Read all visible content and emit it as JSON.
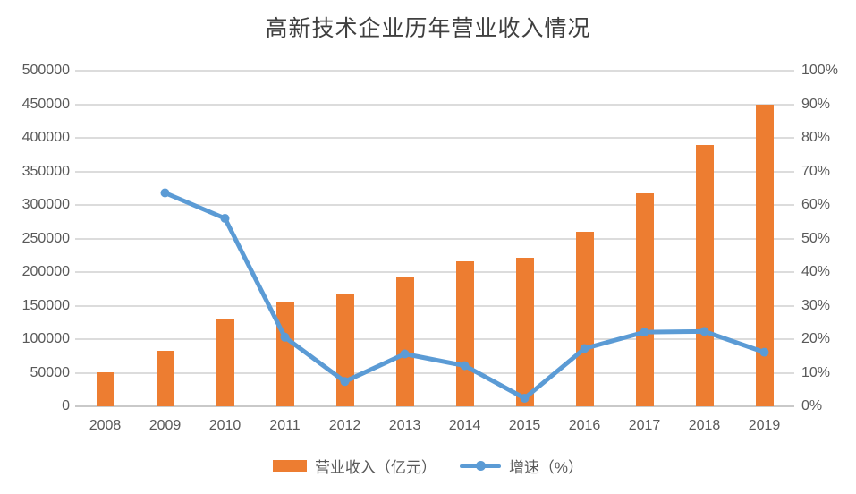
{
  "title": "高新技术企业历年营业收入情况",
  "colors": {
    "bar": "#ED7D31",
    "line": "#5B9BD5",
    "gridline": "#DCDCDC",
    "axis_text": "#595959",
    "title_text": "#3F3F3F"
  },
  "legend": {
    "items": [
      {
        "label": "营业收入（亿元）",
        "marker": "bar-swatch",
        "color": "#ED7D31"
      },
      {
        "label": "增速（%）",
        "marker": "line-dot-swatch",
        "color": "#5B9BD5"
      }
    ]
  },
  "chart_data": {
    "type": "combo-bar-line",
    "title": "高新技术企业历年营业收入情况",
    "categories": [
      "2008",
      "2009",
      "2010",
      "2011",
      "2012",
      "2013",
      "2014",
      "2015",
      "2016",
      "2017",
      "2018",
      "2019"
    ],
    "series": [
      {
        "name": "营业收入（亿元）",
        "type": "bar",
        "axis": "left",
        "color": "#ED7D31",
        "values": [
          51000,
          83000,
          130000,
          156000,
          167000,
          193000,
          216000,
          221500,
          260000,
          318000,
          389000,
          450000
        ]
      },
      {
        "name": "增速（%）",
        "type": "line",
        "axis": "right",
        "color": "#5B9BD5",
        "values": [
          null,
          63.6,
          56.0,
          20.6,
          7.4,
          15.6,
          12.1,
          2.4,
          17.2,
          22.1,
          22.3,
          16.1
        ]
      }
    ],
    "left_axis": {
      "min": 0,
      "max": 500000,
      "step": 50000,
      "tick_labels": [
        "0",
        "50000",
        "100000",
        "150000",
        "200000",
        "250000",
        "300000",
        "350000",
        "400000",
        "450000",
        "500000"
      ]
    },
    "right_axis": {
      "min": 0,
      "max": 100,
      "step": 10,
      "tick_labels": [
        "0%",
        "10%",
        "20%",
        "30%",
        "40%",
        "50%",
        "60%",
        "70%",
        "80%",
        "90%",
        "100%"
      ]
    },
    "grid": "horizontal",
    "legend_position": "bottom"
  }
}
